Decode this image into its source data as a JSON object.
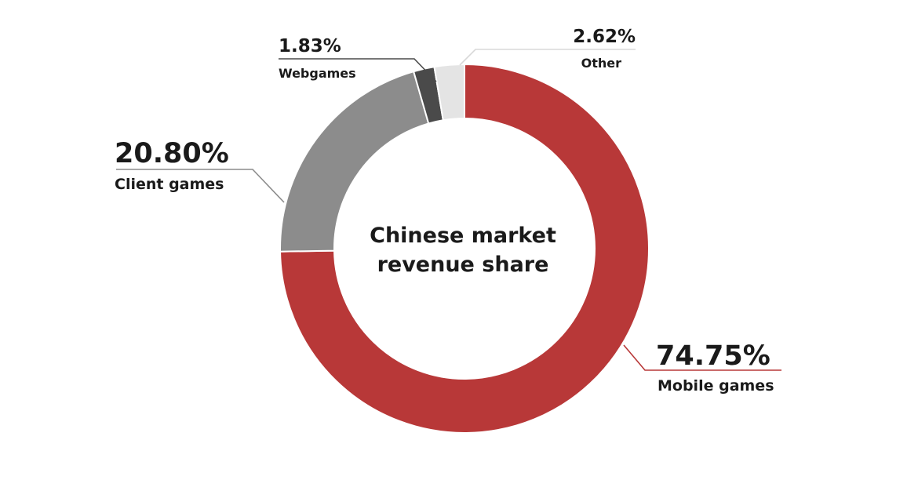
{
  "chart_data": {
    "type": "pie",
    "variant": "donut",
    "center_title": [
      "Chinese market",
      "revenue share"
    ],
    "slices": [
      {
        "label": "Mobile games",
        "value": 74.75,
        "display": "74.75%",
        "color": "#B83838"
      },
      {
        "label": "Client games",
        "value": 20.8,
        "display": "20.80%",
        "color": "#8C8C8C"
      },
      {
        "label": "Webgames",
        "value": 1.83,
        "display": "1.83%",
        "color": "#4A4A4A"
      },
      {
        "label": "Other",
        "value": 2.62,
        "display": "2.62%",
        "color": "#E4E4E4"
      }
    ],
    "start": "top",
    "direction": "clockwise"
  }
}
